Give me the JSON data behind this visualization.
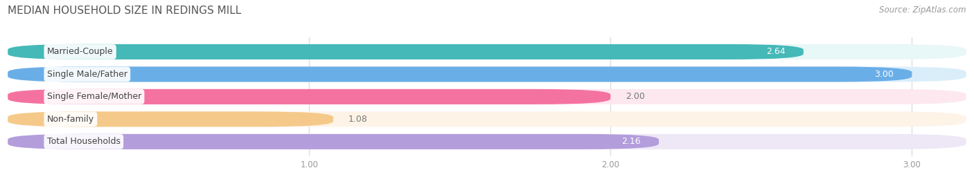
{
  "title": "MEDIAN HOUSEHOLD SIZE IN REDINGS MILL",
  "source": "Source: ZipAtlas.com",
  "categories": [
    "Married-Couple",
    "Single Male/Father",
    "Single Female/Mother",
    "Non-family",
    "Total Households"
  ],
  "values": [
    2.64,
    3.0,
    2.0,
    1.08,
    2.16
  ],
  "bar_colors": [
    "#45b8b8",
    "#6aaee8",
    "#f472a0",
    "#f5c98a",
    "#b39ddb"
  ],
  "bar_bg_colors": [
    "#e8f7f7",
    "#daeefa",
    "#fde8f0",
    "#fdf3e7",
    "#ede7f6"
  ],
  "value_colors": [
    "white",
    "white",
    "gray",
    "gray",
    "gray"
  ],
  "xlim": [
    0.0,
    3.18
  ],
  "xstart": 0.0,
  "xticks": [
    1.0,
    2.0,
    3.0
  ],
  "xtick_labels": [
    "1.00",
    "2.00",
    "3.00"
  ],
  "title_fontsize": 11,
  "source_fontsize": 8.5,
  "label_fontsize": 9,
  "value_fontsize": 9,
  "tick_fontsize": 8.5,
  "background_color": "#ffffff"
}
